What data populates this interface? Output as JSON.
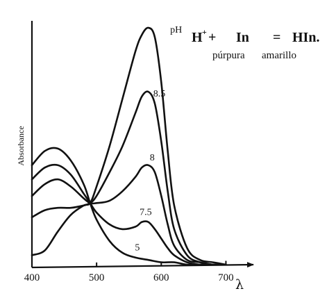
{
  "chart_data": {
    "type": "line",
    "title": "",
    "xlabel_symbol": "λ",
    "ylabel": "Absorbance",
    "xlim": [
      400,
      750
    ],
    "ylim": [
      0,
      1.0
    ],
    "x_ticks": [
      400,
      500,
      600,
      700
    ],
    "x_tick_labels": [
      "400",
      "500",
      "600",
      "700"
    ],
    "grid": false,
    "legend": "none",
    "equation": {
      "h_plus": "H",
      "h_sup": "+",
      "plus": "+",
      "indicator": "In",
      "equals": "=",
      "product": "HIn.",
      "color_label_in": "púrpura",
      "color_label_hin": "amarillo"
    },
    "series": [
      {
        "name": "pH",
        "label_x": 623,
        "label_y": 0.98,
        "x": [
          400,
          420,
          440,
          460,
          480,
          490,
          500,
          520,
          540,
          560,
          570,
          580,
          590,
          600,
          610,
          620,
          640,
          660,
          680,
          700
        ],
        "y": [
          0.04,
          0.06,
          0.14,
          0.21,
          0.25,
          0.26,
          0.33,
          0.5,
          0.7,
          0.9,
          0.97,
          1.0,
          0.96,
          0.77,
          0.48,
          0.25,
          0.07,
          0.02,
          0.01,
          0.0
        ]
      },
      {
        "name": "8.5",
        "label_x": 597,
        "label_y": 0.71,
        "x": [
          400,
          420,
          440,
          460,
          480,
          490,
          500,
          520,
          540,
          560,
          570,
          580,
          590,
          600,
          610,
          620,
          640,
          660,
          680,
          700
        ],
        "y": [
          0.2,
          0.23,
          0.24,
          0.24,
          0.25,
          0.26,
          0.29,
          0.39,
          0.5,
          0.64,
          0.71,
          0.73,
          0.68,
          0.52,
          0.31,
          0.15,
          0.04,
          0.01,
          0.0,
          0.0
        ]
      },
      {
        "name": "8",
        "label_x": 586,
        "label_y": 0.44,
        "x": [
          400,
          420,
          440,
          460,
          480,
          490,
          500,
          520,
          540,
          560,
          570,
          580,
          590,
          600,
          610,
          620,
          640,
          660,
          680,
          700
        ],
        "y": [
          0.29,
          0.34,
          0.36,
          0.33,
          0.28,
          0.26,
          0.26,
          0.27,
          0.31,
          0.37,
          0.41,
          0.42,
          0.39,
          0.29,
          0.17,
          0.08,
          0.02,
          0.01,
          0.0,
          0.0
        ]
      },
      {
        "name": "7.5",
        "label_x": 576,
        "label_y": 0.21,
        "x": [
          400,
          420,
          440,
          460,
          480,
          490,
          500,
          520,
          540,
          560,
          570,
          580,
          590,
          600,
          610,
          620,
          640,
          660,
          680,
          700
        ],
        "y": [
          0.36,
          0.41,
          0.42,
          0.38,
          0.3,
          0.26,
          0.22,
          0.17,
          0.15,
          0.16,
          0.18,
          0.18,
          0.15,
          0.11,
          0.07,
          0.04,
          0.01,
          0.0,
          0.0,
          0.0
        ]
      },
      {
        "name": "5",
        "label_x": 563,
        "label_y": 0.06,
        "x": [
          400,
          420,
          440,
          460,
          480,
          490,
          500,
          520,
          540,
          560,
          580,
          600,
          620,
          640,
          660,
          680,
          700
        ],
        "y": [
          0.42,
          0.48,
          0.49,
          0.44,
          0.34,
          0.26,
          0.19,
          0.1,
          0.05,
          0.03,
          0.02,
          0.01,
          0.01,
          0.0,
          0.0,
          0.0,
          0.0
        ]
      }
    ]
  }
}
